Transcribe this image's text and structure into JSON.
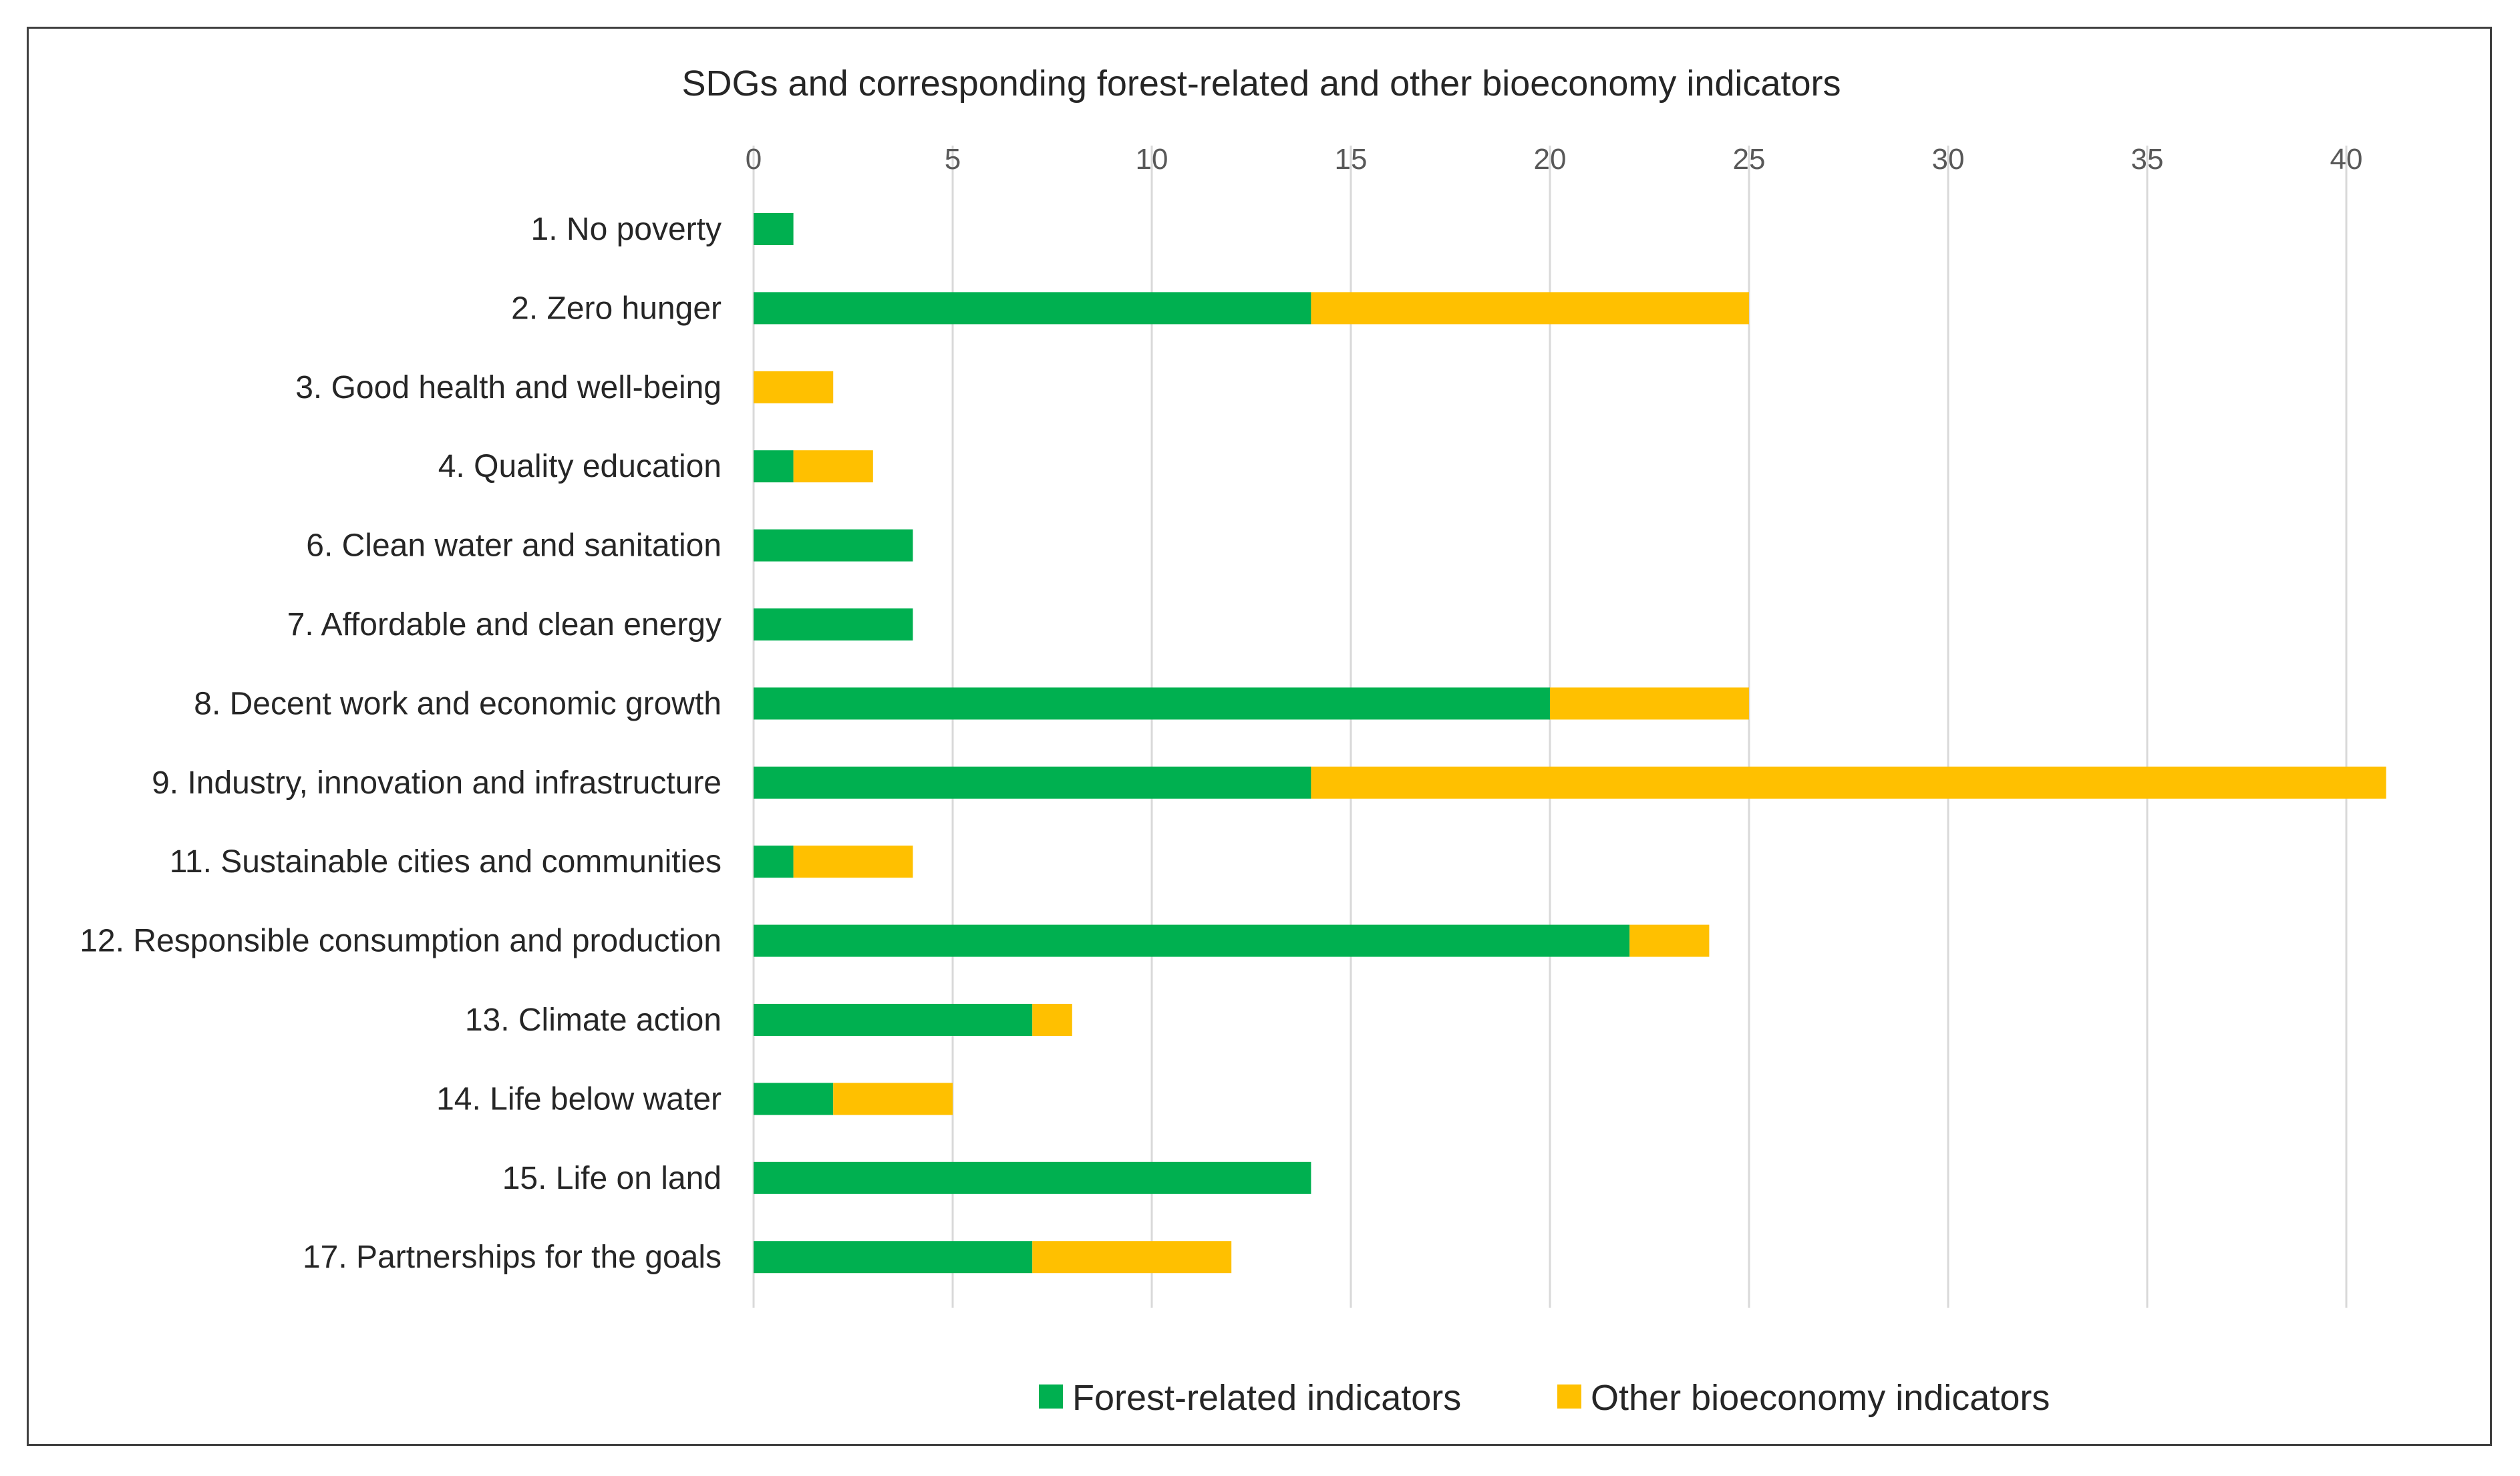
{
  "chart_data": {
    "type": "bar",
    "orientation": "horizontal",
    "stacked": true,
    "title": "SDGs and corresponding forest-related and other bioeconomy indicators",
    "xlabel": "",
    "ylabel": "",
    "xlim": [
      0,
      42
    ],
    "xticks": [
      0,
      5,
      10,
      15,
      20,
      25,
      30,
      35,
      40
    ],
    "x_axis_position": "top",
    "grid": true,
    "legend_position": "bottom",
    "categories": [
      "1. No poverty",
      "2. Zero hunger",
      "3. Good health and well-being",
      "4. Quality education",
      "6. Clean water and sanitation",
      "7. Affordable and clean energy",
      "8. Decent work and economic growth",
      "9. Industry, innovation and infrastructure",
      "11. Sustainable cities and communities",
      "12. Responsible consumption and production",
      "13. Climate action",
      "14. Life below water",
      "15. Life on land",
      "17. Partnerships for the goals"
    ],
    "series": [
      {
        "name": "Forest-related indicators",
        "color": "#00b050",
        "values": [
          1,
          14,
          0,
          1,
          4,
          4,
          20,
          14,
          1,
          22,
          7,
          2,
          14,
          7
        ]
      },
      {
        "name": "Other bioeconomy indicators",
        "color": "#ffc000",
        "values": [
          0,
          11,
          2,
          2,
          0,
          0,
          5,
          27,
          3,
          2,
          1,
          3,
          0,
          5
        ]
      }
    ]
  }
}
